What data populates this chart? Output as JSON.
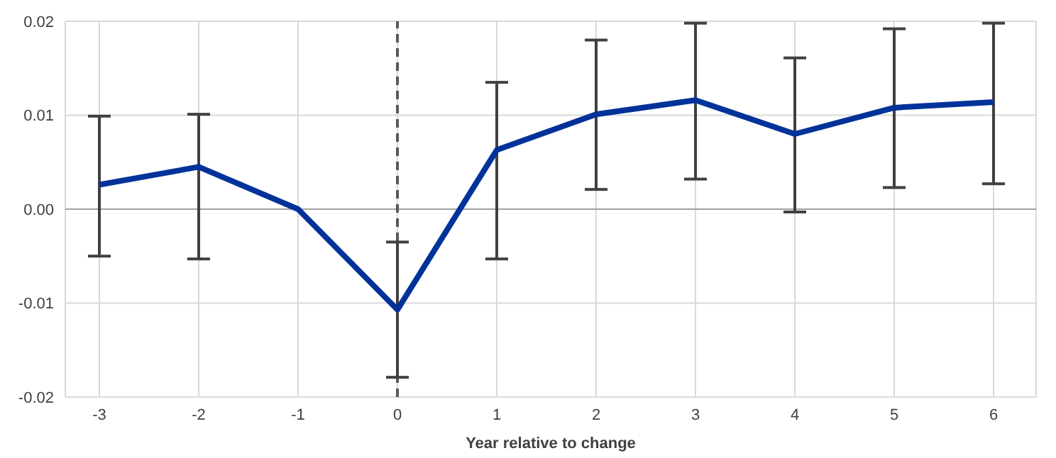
{
  "chart_data": {
    "type": "line",
    "xlabel": "Year relative to change",
    "categories": [
      "-3",
      "-2",
      "-1",
      "0",
      "1",
      "2",
      "3",
      "4",
      "5",
      "6"
    ],
    "series": [
      {
        "color": "#003299",
        "values": [
          0.0026,
          0.0045,
          0,
          -0.0107,
          0.0063,
          0.0101,
          0.0116,
          0.008,
          0.0108,
          0.0114
        ],
        "errors": [
          [
            -0.005,
            0.0099
          ],
          [
            -0.0053,
            0.0101
          ],
          null,
          [
            -0.0179,
            -0.0035
          ],
          [
            -0.0053,
            0.0135
          ],
          [
            0.0021,
            0.018
          ],
          [
            0.0032,
            0.0198
          ],
          [
            -0.0003,
            0.0161
          ],
          [
            0.0023,
            0.0192
          ],
          [
            0.0027,
            0.0198
          ]
        ]
      }
    ],
    "ylim": [
      -0.02,
      0.02
    ],
    "yticks": [
      {
        "value": -0.02,
        "label": "-0.02"
      },
      {
        "value": -0.01,
        "label": "-0.01"
      },
      {
        "value": 0,
        "label": "0.00"
      },
      {
        "value": 0.01,
        "label": "0.01"
      },
      {
        "value": 0.02,
        "label": "0.02"
      }
    ],
    "grid": true,
    "marker": "none",
    "line_style": "solid",
    "ref_lines": [
      {
        "axis": "y",
        "value": 0,
        "color": "#a0a0a0",
        "line_style": "solid"
      },
      {
        "axis": "x",
        "value": "0",
        "color": "#595959",
        "line_style": "dashed"
      }
    ]
  }
}
